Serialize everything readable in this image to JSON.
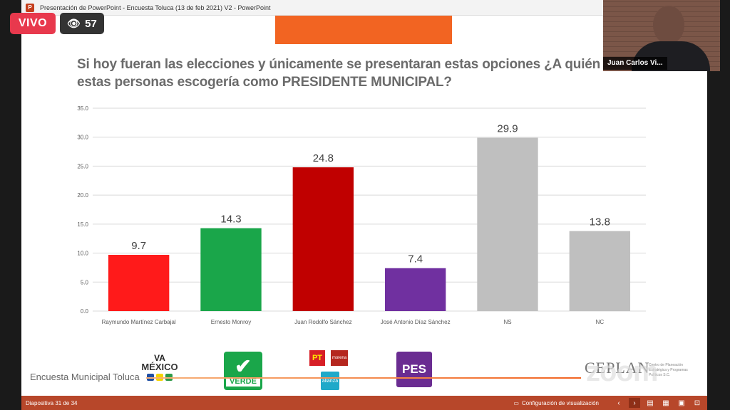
{
  "window": {
    "title": "Presentación de PowerPoint  -  Encuesta Toluca (13 de feb 2021) V2 - PowerPoint"
  },
  "live": {
    "badge": "VIVO",
    "viewers": "57"
  },
  "video": {
    "name": "Juan Carlos Vi..."
  },
  "slide": {
    "question": "Si hoy fueran las elecciones y únicamente se presentaran estas opciones ¿A quién de estas personas escogería como PRESIDENTE MUNICIPAL?",
    "footer": "Encuesta Municipal Toluca",
    "brand": "CEPLAN",
    "brand_sub": "Centro de Planeación Estratégica y Programas Políticos S.C.",
    "watermark": "zoom"
  },
  "logos": {
    "va_top": "VA",
    "va_bottom": "MÉXICO",
    "verde": "VERDE",
    "pt": "PT",
    "morena": "morena",
    "alianza": "alianza",
    "pes": "PES"
  },
  "status": {
    "slide_info": "Diapositiva 31 de 34",
    "display_settings": "Configuración de visualización"
  },
  "colors": {
    "accent": "#f26422",
    "status_bar": "#b7472a",
    "live": "#e8394d"
  },
  "chart_data": {
    "type": "bar",
    "categories": [
      "Raymundo Martínez Carbajal",
      "Ernesto Monroy",
      "Juan Rodolfo Sánchez",
      "José Antonio Díaz Sánchez",
      "NS",
      "NC"
    ],
    "values": [
      9.7,
      14.3,
      24.8,
      7.4,
      29.9,
      13.8
    ],
    "bar_colors": [
      "#ff1a1a",
      "#1aa64a",
      "#c00000",
      "#7030a0",
      "#bfbfbf",
      "#bfbfbf"
    ],
    "ylim": [
      0,
      35
    ],
    "yticks": [
      "0.0",
      "5.0",
      "10.0",
      "15.0",
      "20.0",
      "25.0",
      "30.0",
      "35.0"
    ],
    "grid": true,
    "xlabel": "",
    "ylabel": ""
  }
}
